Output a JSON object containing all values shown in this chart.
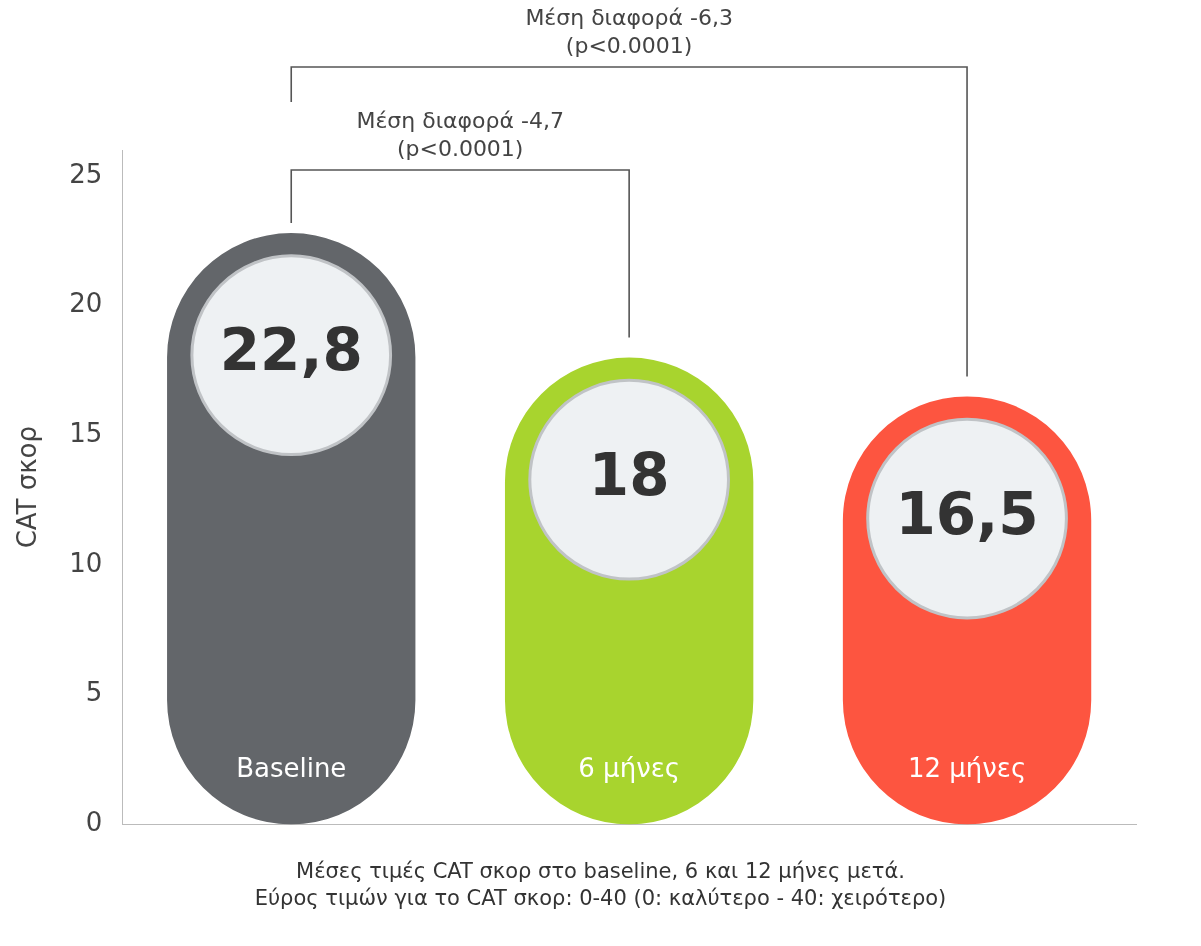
{
  "chart_data": {
    "type": "bar",
    "ylabel": "CAT σκορ",
    "categories": [
      "Baseline",
      "6 μήνες",
      "12 μήνες"
    ],
    "values": [
      22.8,
      18,
      16.5
    ],
    "colors": [
      "#63666a",
      "#a8d42e",
      "#fd5540"
    ],
    "value_labels": [
      "22,8",
      "18",
      "16,5"
    ],
    "ylim": [
      0,
      26
    ],
    "yticks": [
      0,
      5,
      10,
      15,
      20,
      25
    ],
    "grid": false,
    "legend": false,
    "annotations": [
      "Μέση διαφορά -4,7\n(p<0.0001)",
      "Μέση διαφορά -6,3\n(p<0.0001)",
      "Μέσες τιμές CAT σκορ στο baseline, 6 και 12 μήνες μετά.",
      "Εύρος τιμών για το CAT σκορ: 0-40 (0: καλύτερο - 40: χειρότερο)"
    ]
  }
}
